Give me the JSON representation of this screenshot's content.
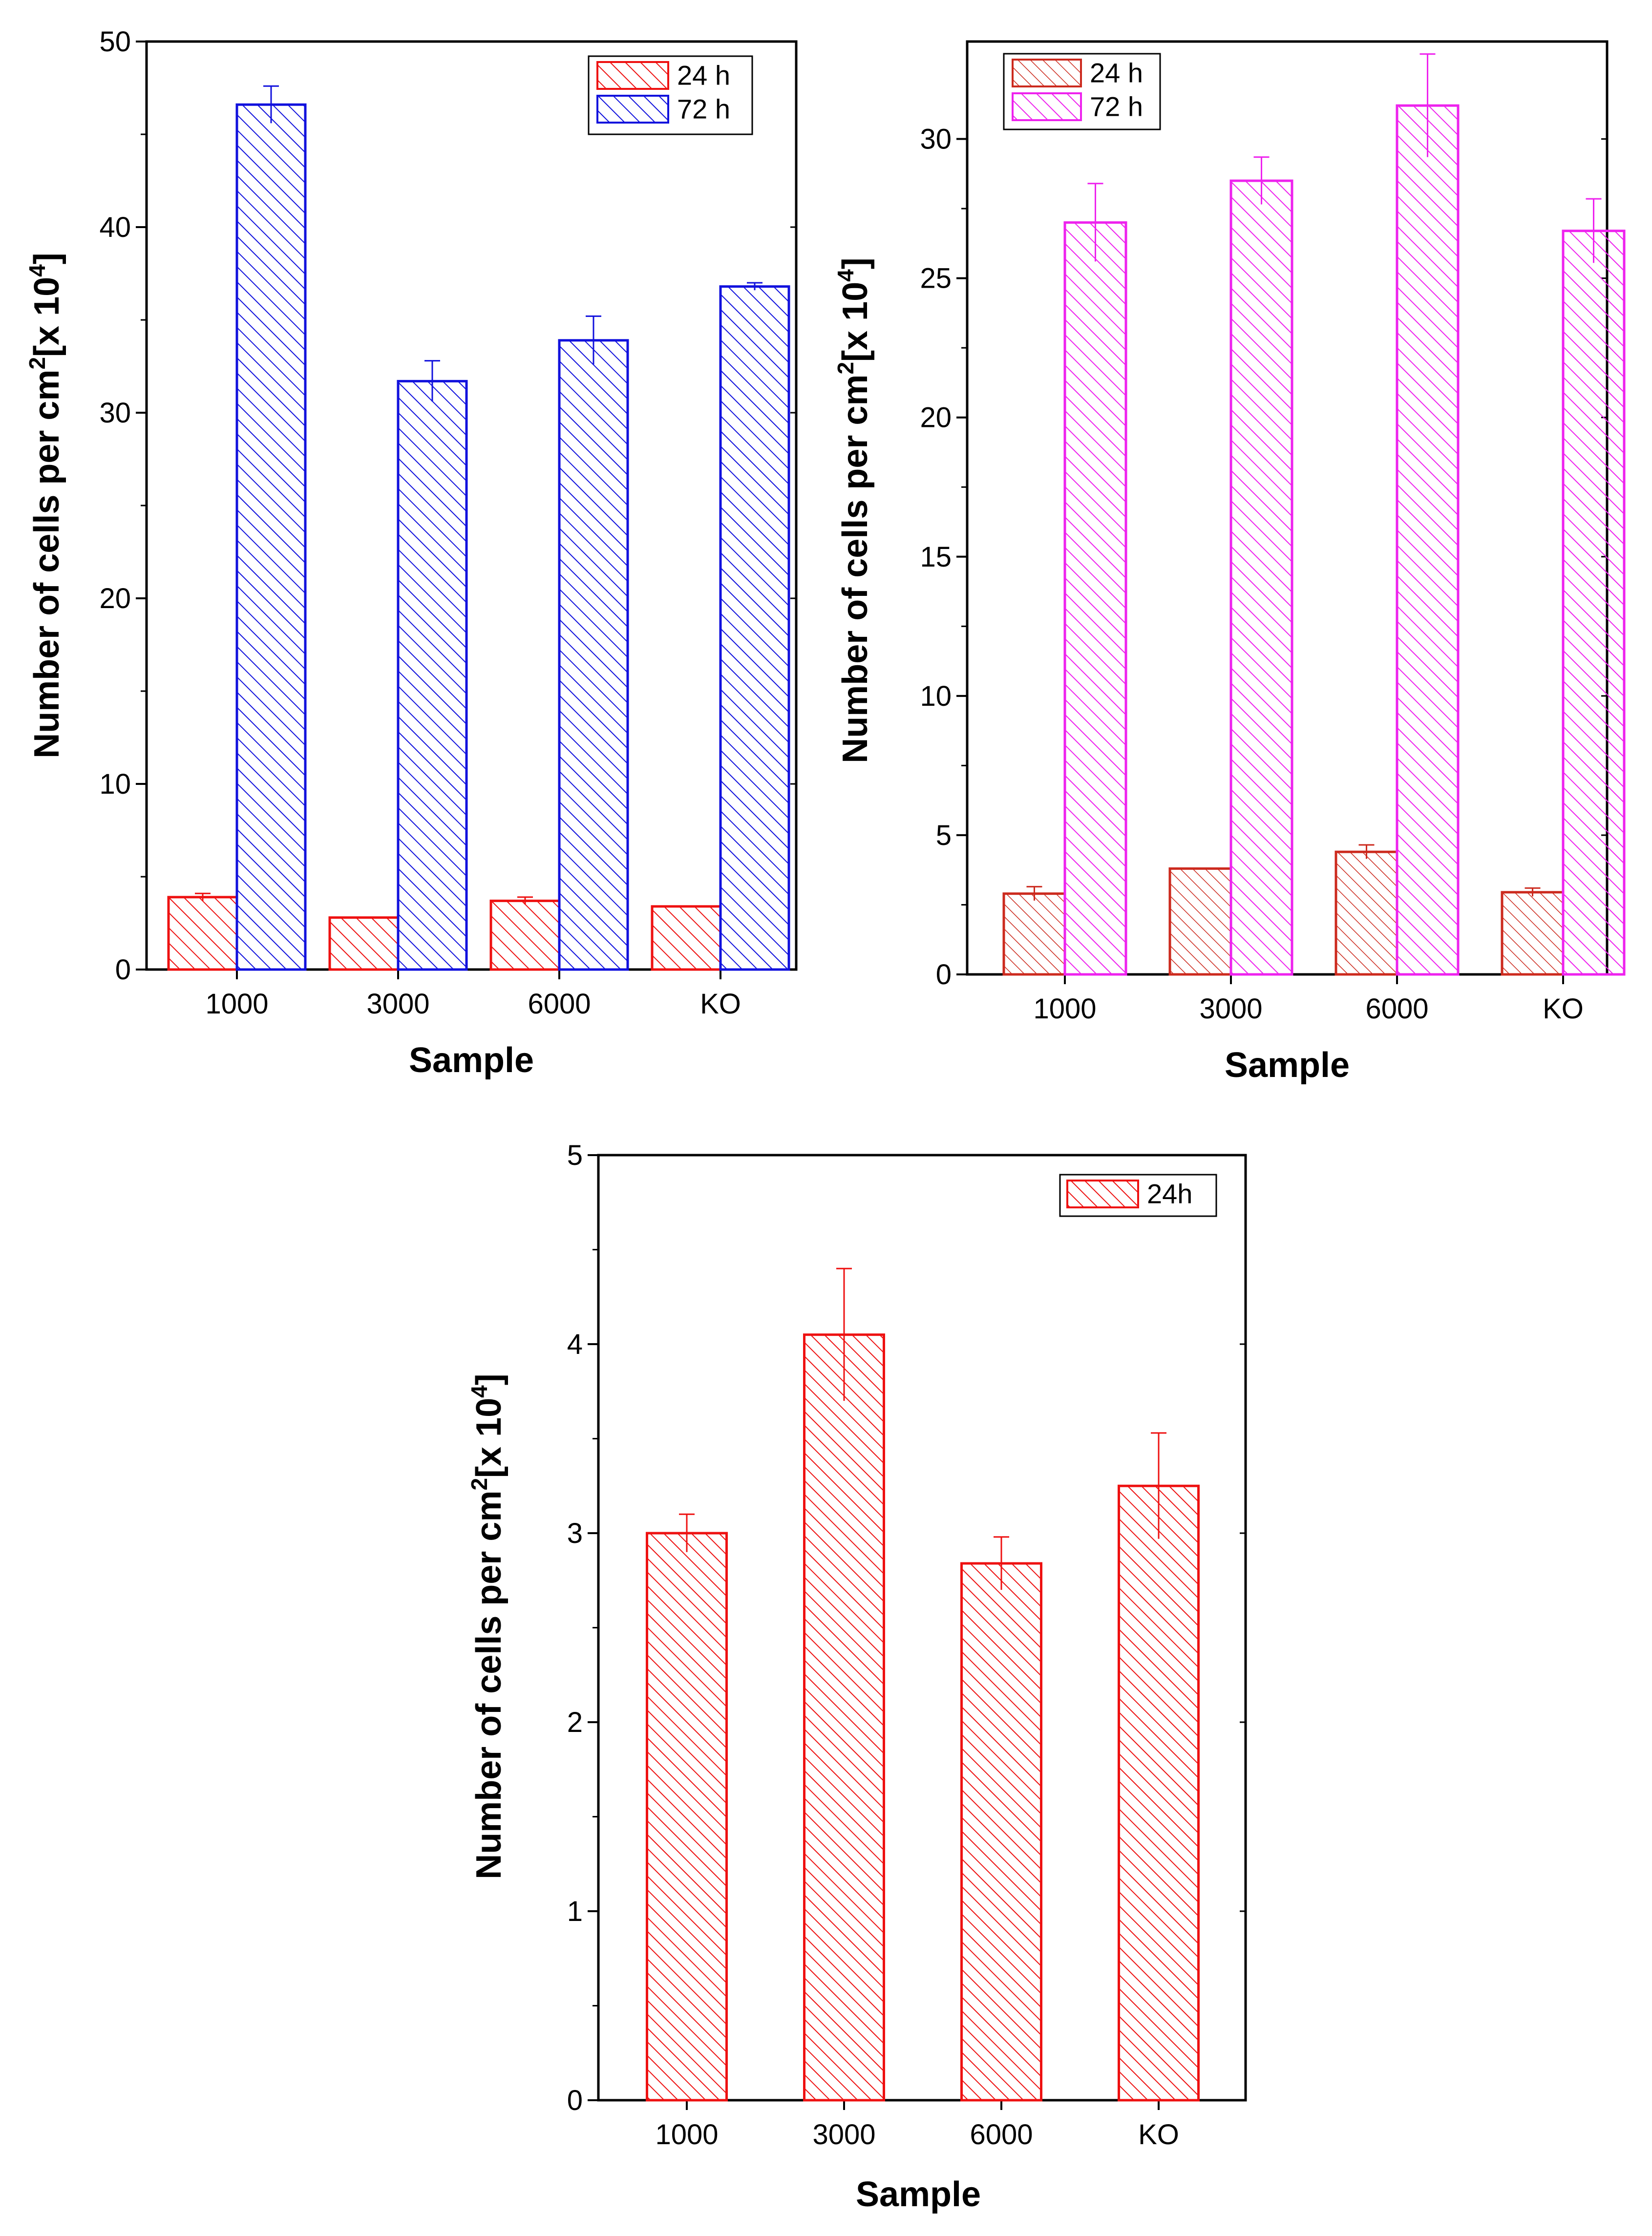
{
  "figure_label": "Three bar charts of cell counts per sample",
  "chart_data": [
    {
      "type": "bar",
      "title": "",
      "xlabel": "Sample",
      "ylabel": "Number of cells per cm",
      "ylabel_sup": "2",
      "ylabel_unit": "[x 10",
      "ylabel_unit_sup": "4",
      "ylabel_close": "]",
      "categories": [
        "1000",
        "3000",
        "6000",
        "KO"
      ],
      "ylim": [
        0,
        50
      ],
      "yticks": [
        0,
        10,
        20,
        30,
        40,
        50
      ],
      "yticks_labels": [
        "0",
        "10",
        "20",
        "30",
        "40",
        "50"
      ],
      "legend_position": "top-right",
      "series": [
        {
          "name": "24 h",
          "color": "#ee1111",
          "values": [
            3.9,
            2.8,
            3.7,
            3.4
          ],
          "errors": [
            0.2,
            0.0,
            0.2,
            0.0
          ]
        },
        {
          "name": "72 h",
          "color": "#1111dd",
          "values": [
            46.6,
            31.7,
            33.9,
            36.8
          ],
          "errors": [
            1.0,
            1.1,
            1.3,
            0.2
          ]
        }
      ]
    },
    {
      "type": "bar",
      "title": "",
      "xlabel": "Sample",
      "ylabel": "Number of cells per cm",
      "ylabel_sup": "2",
      "ylabel_unit": "[x 10",
      "ylabel_unit_sup": "4",
      "ylabel_close": "]",
      "categories": [
        "1000",
        "3000",
        "6000",
        "KO"
      ],
      "ylim": [
        0,
        33.5
      ],
      "yticks": [
        0,
        5,
        10,
        15,
        20,
        25,
        30
      ],
      "yticks_labels": [
        "0",
        "5",
        "10",
        "15",
        "20",
        "25",
        "30"
      ],
      "legend_position": "top-left",
      "series": [
        {
          "name": "24 h",
          "color": "#cc2a1e",
          "values": [
            2.9,
            3.8,
            4.4,
            2.95
          ],
          "errors": [
            0.25,
            0.0,
            0.25,
            0.15
          ]
        },
        {
          "name": "72 h",
          "color": "#ee22ee",
          "values": [
            27.0,
            28.5,
            31.2,
            26.7
          ],
          "errors": [
            1.4,
            0.85,
            1.85,
            1.15
          ]
        }
      ]
    },
    {
      "type": "bar",
      "title": "",
      "xlabel": "Sample",
      "ylabel": "Number of cells per cm",
      "ylabel_sup": "2",
      "ylabel_unit": "[x 10",
      "ylabel_unit_sup": "4",
      "ylabel_close": "]",
      "categories": [
        "1000",
        "3000",
        "6000",
        "KO"
      ],
      "ylim": [
        0,
        5
      ],
      "yticks": [
        0,
        1,
        2,
        3,
        4,
        5
      ],
      "yticks_labels": [
        "0",
        "1",
        "2",
        "3",
        "4",
        "5"
      ],
      "legend_position": "top-right",
      "series": [
        {
          "name": "24h",
          "color": "#ee1111",
          "values": [
            3.0,
            4.05,
            2.84,
            3.25
          ],
          "errors": [
            0.1,
            0.35,
            0.14,
            0.28
          ]
        }
      ]
    }
  ]
}
